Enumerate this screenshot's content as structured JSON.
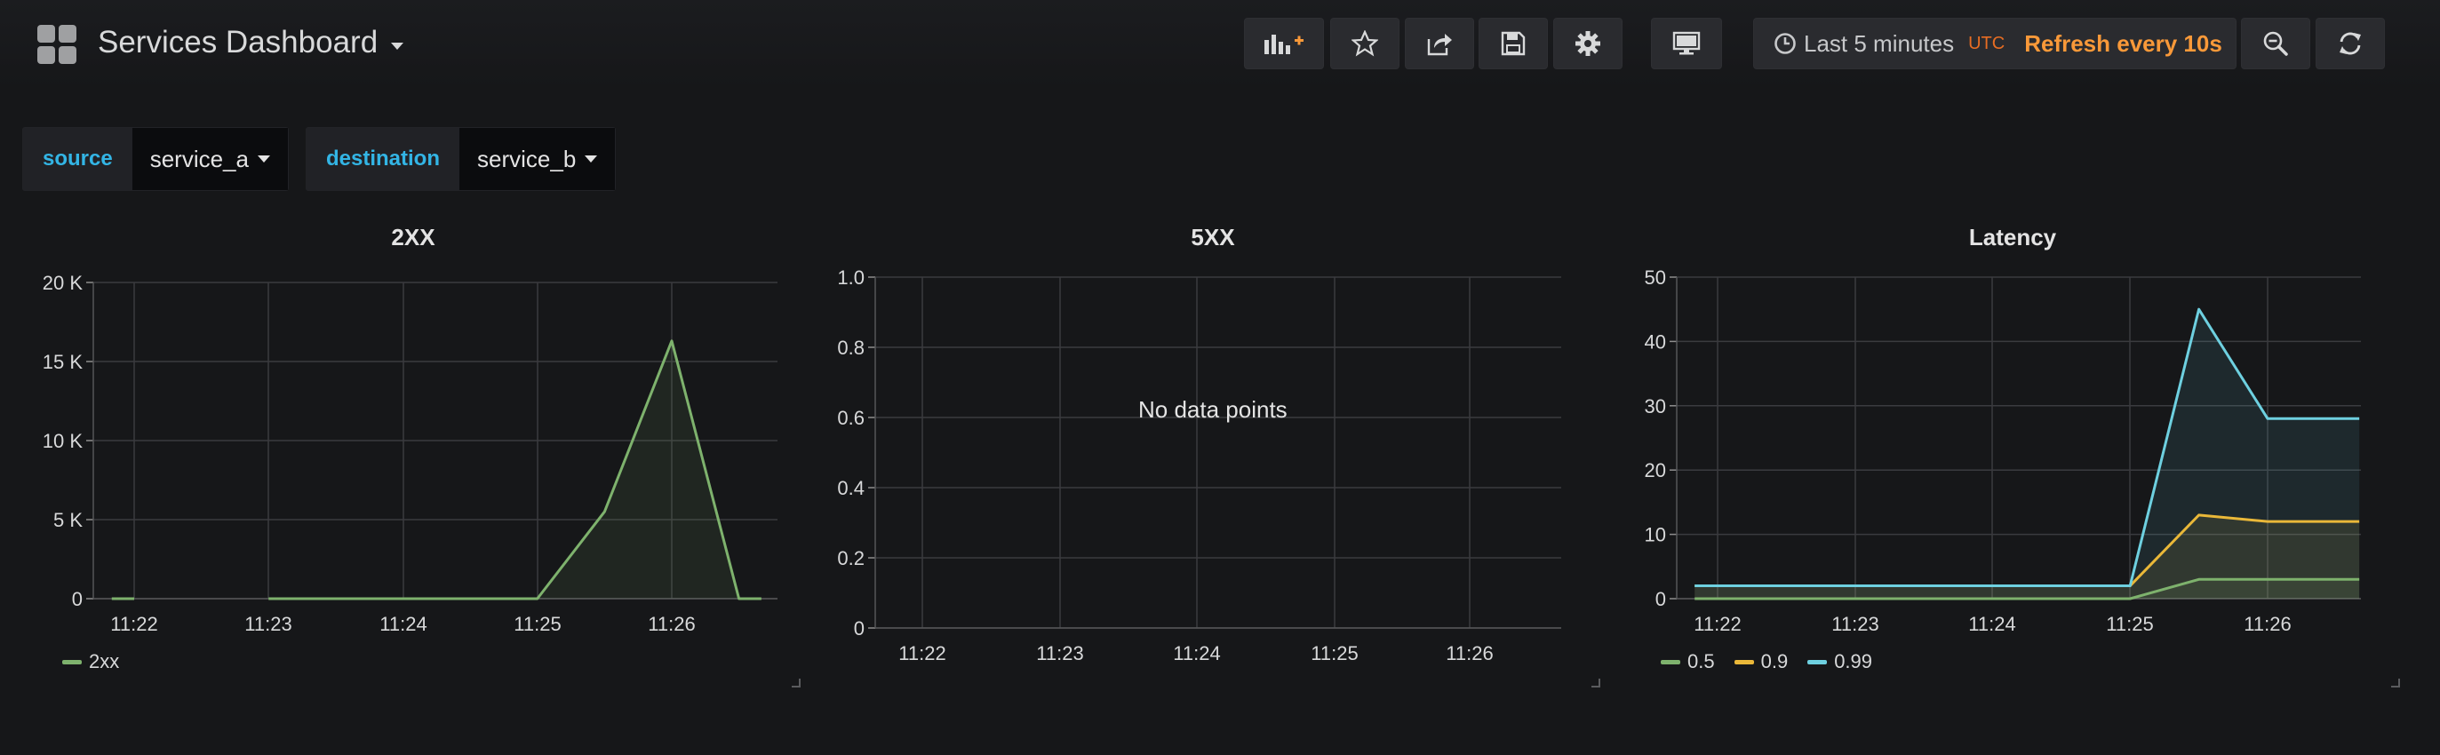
{
  "header": {
    "title": "Services Dashboard",
    "time_range": "Last 5 minutes",
    "timezone": "UTC",
    "refresh": "Refresh every 10s",
    "icons": [
      "add-panel-icon",
      "star-icon",
      "share-icon",
      "save-icon",
      "gear-icon",
      "monitor-icon",
      "clock-icon",
      "zoom-out-icon",
      "refresh-icon"
    ]
  },
  "variables": [
    {
      "label": "source",
      "value": "service_a"
    },
    {
      "label": "destination",
      "value": "service_b"
    }
  ],
  "colors": {
    "green": "#7eb26d",
    "yellow": "#eab839",
    "cyan": "#6ed0e0",
    "orange": "#f99939",
    "blue_label": "#33b5e5"
  },
  "panels": [
    {
      "title": "2XX",
      "legend": [
        {
          "name": "2xx",
          "color": "#7eb26d"
        }
      ]
    },
    {
      "title": "5XX",
      "no_data": "No data points",
      "legend": []
    },
    {
      "title": "Latency",
      "legend": [
        {
          "name": "0.5",
          "color": "#7eb26d"
        },
        {
          "name": "0.9",
          "color": "#eab839"
        },
        {
          "name": "0.99",
          "color": "#6ed0e0"
        }
      ]
    }
  ],
  "chart_data": [
    {
      "type": "area",
      "title": "2XX",
      "x_ticks": [
        "11:22",
        "11:23",
        "11:24",
        "11:25",
        "11:26"
      ],
      "y_ticks": [
        "0",
        "5 K",
        "10 K",
        "15 K",
        "20 K"
      ],
      "ylim": [
        0,
        20000
      ],
      "xlim": [
        "11:21:50",
        "11:26:40"
      ],
      "grid": true,
      "legend": "bottom-left",
      "series": [
        {
          "name": "2xx",
          "color": "#7eb26d",
          "fill": true,
          "segments": [
            [
              [
                "11:21:50",
                0
              ],
              [
                "11:22:00",
                0
              ]
            ],
            [
              [
                "11:23:00",
                0
              ],
              [
                "11:25:00",
                0
              ],
              [
                "11:25:30",
                5500
              ],
              [
                "11:26:00",
                16300
              ],
              [
                "11:26:30",
                0
              ],
              [
                "11:26:40",
                0
              ]
            ]
          ]
        }
      ]
    },
    {
      "type": "line",
      "title": "5XX",
      "x_ticks": [
        "11:22",
        "11:23",
        "11:24",
        "11:25",
        "11:26"
      ],
      "y_ticks": [
        "0",
        "0.2",
        "0.4",
        "0.6",
        "0.8",
        "1.0"
      ],
      "ylim": [
        0,
        1
      ],
      "grid": true,
      "annotations": [
        "No data points"
      ],
      "series": []
    },
    {
      "type": "area",
      "title": "Latency",
      "x_ticks": [
        "11:22",
        "11:23",
        "11:24",
        "11:25",
        "11:26"
      ],
      "y_ticks": [
        "0",
        "10",
        "20",
        "30",
        "40",
        "50"
      ],
      "ylim": [
        0,
        50
      ],
      "xlim": [
        "11:21:50",
        "11:26:40"
      ],
      "grid": true,
      "legend": "bottom-left",
      "series": [
        {
          "name": "0.5",
          "color": "#7eb26d",
          "fill": true,
          "points": [
            [
              "11:21:50",
              0
            ],
            [
              "11:25:00",
              0
            ],
            [
              "11:25:30",
              3
            ],
            [
              "11:26:00",
              3
            ],
            [
              "11:26:40",
              3
            ]
          ]
        },
        {
          "name": "0.9",
          "color": "#eab839",
          "fill": true,
          "points": [
            [
              "11:21:50",
              2
            ],
            [
              "11:25:00",
              2
            ],
            [
              "11:25:30",
              13
            ],
            [
              "11:26:00",
              12
            ],
            [
              "11:26:40",
              12
            ]
          ]
        },
        {
          "name": "0.99",
          "color": "#6ed0e0",
          "fill": true,
          "points": [
            [
              "11:21:50",
              2
            ],
            [
              "11:25:00",
              2
            ],
            [
              "11:25:30",
              45
            ],
            [
              "11:26:00",
              28
            ],
            [
              "11:26:40",
              28
            ]
          ]
        }
      ]
    }
  ]
}
